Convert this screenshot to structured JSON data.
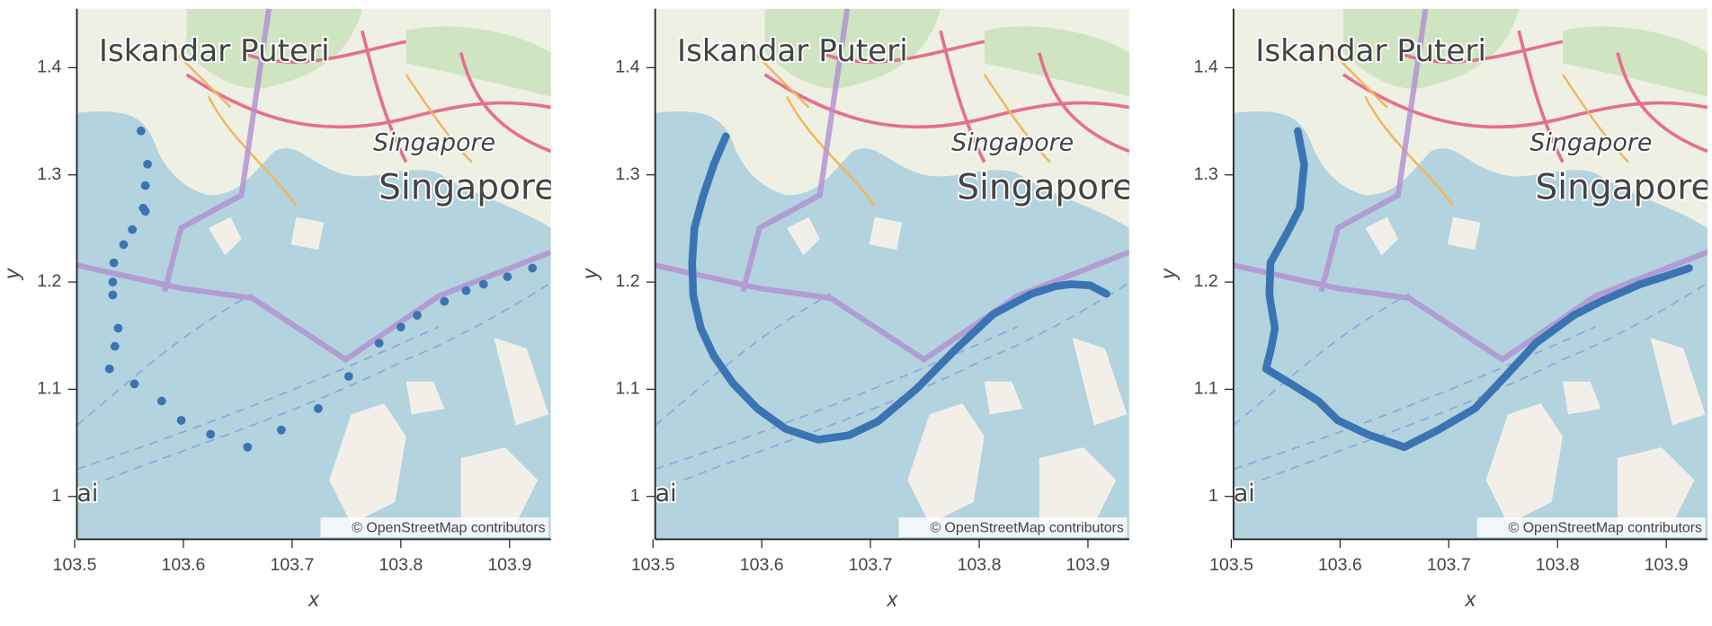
{
  "chart_data": [
    {
      "type": "scatter",
      "color": "#3a74b2",
      "x": [
        103.561,
        103.567,
        103.565,
        103.563,
        103.553,
        103.545,
        103.536,
        103.535,
        103.535,
        103.54,
        103.537,
        103.532,
        103.555,
        103.58,
        103.598,
        103.625,
        103.659,
        103.69,
        103.724,
        103.752,
        103.78,
        103.8,
        103.815,
        103.84,
        103.86,
        103.876,
        103.898,
        103.921,
        103.565
      ],
      "y": [
        1.341,
        1.31,
        1.29,
        1.269,
        1.249,
        1.235,
        1.218,
        1.2,
        1.188,
        1.157,
        1.14,
        1.119,
        1.105,
        1.089,
        1.071,
        1.058,
        1.046,
        1.062,
        1.082,
        1.112,
        1.143,
        1.158,
        1.169,
        1.182,
        1.192,
        1.198,
        1.205,
        1.213,
        1.266
      ],
      "xlabel": "x",
      "ylabel": "y",
      "xlim": [
        103.502,
        103.938
      ],
      "ylim": [
        0.96,
        1.455
      ],
      "xticks": [
        103.5,
        103.6,
        103.7,
        103.8,
        103.9
      ],
      "yticks": [
        1,
        1.1,
        1.2,
        1.3,
        1.4
      ],
      "map_labels": [
        "Iskandar Puteri",
        "Singapore",
        "Singapore",
        "ai"
      ],
      "attribution": "© OpenStreetMap contributors"
    },
    {
      "type": "line",
      "color": "#3a74b2",
      "x": [
        103.567,
        103.556,
        103.546,
        103.538,
        103.536,
        103.537,
        103.544,
        103.556,
        103.574,
        103.596,
        103.622,
        103.652,
        103.68,
        103.707,
        103.742,
        103.778,
        103.813,
        103.848,
        103.87,
        103.884,
        103.902,
        103.917
      ],
      "y": [
        1.336,
        1.31,
        1.28,
        1.25,
        1.218,
        1.187,
        1.157,
        1.131,
        1.105,
        1.082,
        1.063,
        1.053,
        1.057,
        1.07,
        1.1,
        1.137,
        1.17,
        1.189,
        1.196,
        1.198,
        1.197,
        1.189
      ],
      "xlabel": "x",
      "ylabel": "y",
      "xlim": [
        103.502,
        103.938
      ],
      "ylim": [
        0.96,
        1.455
      ],
      "xticks": [
        103.5,
        103.6,
        103.7,
        103.8,
        103.9
      ],
      "yticks": [
        1,
        1.1,
        1.2,
        1.3,
        1.4
      ],
      "map_labels": [
        "Iskandar Puteri",
        "Singapore",
        "Singapore",
        "ai"
      ],
      "attribution": "© OpenStreetMap contributors"
    },
    {
      "type": "line",
      "color": "#3a74b2",
      "x": [
        103.561,
        103.567,
        103.563,
        103.553,
        103.536,
        103.535,
        103.54,
        103.537,
        103.532,
        103.555,
        103.58,
        103.598,
        103.625,
        103.659,
        103.69,
        103.724,
        103.752,
        103.78,
        103.815,
        103.84,
        103.876,
        103.898,
        103.921
      ],
      "y": [
        1.341,
        1.31,
        1.269,
        1.249,
        1.218,
        1.188,
        1.157,
        1.14,
        1.119,
        1.105,
        1.089,
        1.071,
        1.058,
        1.046,
        1.062,
        1.082,
        1.112,
        1.143,
        1.169,
        1.182,
        1.198,
        1.205,
        1.213
      ],
      "xlabel": "x",
      "ylabel": "y",
      "xlim": [
        103.502,
        103.938
      ],
      "ylim": [
        0.96,
        1.455
      ],
      "xticks": [
        103.5,
        103.6,
        103.7,
        103.8,
        103.9
      ],
      "yticks": [
        1,
        1.1,
        1.2,
        1.3,
        1.4
      ],
      "map_labels": [
        "Iskandar Puteri",
        "Singapore",
        "Singapore",
        "ai"
      ],
      "attribution": "© OpenStreetMap contributors"
    }
  ]
}
